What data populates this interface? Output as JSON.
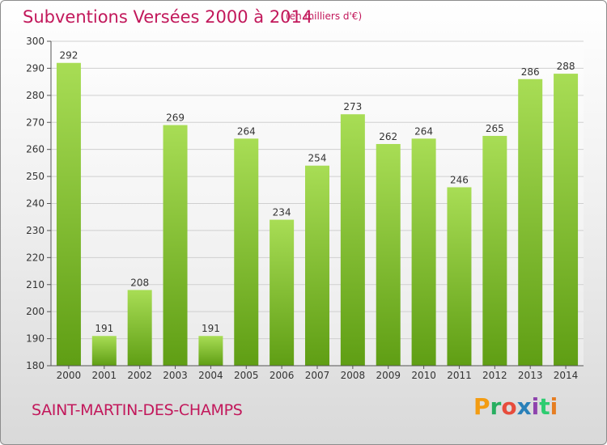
{
  "header": {
    "title": "Subventions Versées 2000 à 2014",
    "unit_note": "(en milliers d'€)"
  },
  "footer": {
    "commune": "SAINT-MARTIN-DES-CHAMPS",
    "logo_text": "Proxiti",
    "logo_colors": [
      "#f39c12",
      "#27ae60",
      "#e74c3c",
      "#2980b9",
      "#8e44ad",
      "#2ecc71",
      "#e67e22"
    ]
  },
  "colors": {
    "title": "#c2185b",
    "bar_top": "#a8dd55",
    "bar_bottom": "#5f9e14",
    "grid": "#cfcfcf",
    "axis": "#555555"
  },
  "chart_data": {
    "type": "bar",
    "categories": [
      "2000",
      "2001",
      "2002",
      "2003",
      "2004",
      "2005",
      "2006",
      "2007",
      "2008",
      "2009",
      "2010",
      "2011",
      "2012",
      "2013",
      "2014"
    ],
    "values": [
      292,
      191,
      208,
      269,
      191,
      264,
      234,
      254,
      273,
      262,
      264,
      246,
      265,
      286,
      288
    ],
    "ylim": [
      180,
      300
    ],
    "yticks": [
      180,
      190,
      200,
      210,
      220,
      230,
      240,
      250,
      260,
      270,
      280,
      290,
      300
    ],
    "grid": true,
    "data_labels": true
  }
}
